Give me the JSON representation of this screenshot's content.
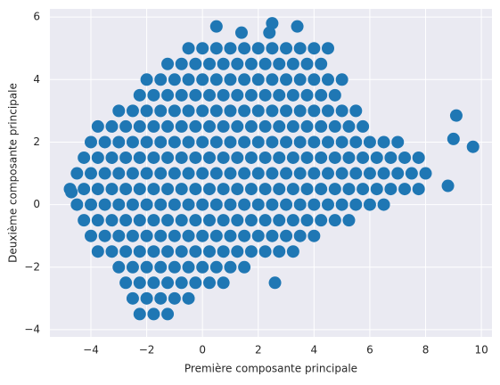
{
  "chart_data": {
    "type": "scatter",
    "x_label": "Première composante principale",
    "y_label": "Deuxième composante principale",
    "color": "#1f77b4",
    "grid": true,
    "xlim": [
      -5.47,
      10.38
    ],
    "ylim": [
      -4.23,
      6.26
    ],
    "xticks": [
      {
        "value": -4,
        "label": "−4"
      },
      {
        "value": -2,
        "label": "−2"
      },
      0,
      2,
      4,
      6,
      8,
      10
    ],
    "yticks": [
      {
        "value": -4,
        "label": "−4"
      },
      {
        "value": -2,
        "label": "−2"
      },
      0,
      2,
      4,
      6
    ],
    "x": [
      -0.5,
      0,
      0.5,
      1,
      1.5,
      2,
      2.5,
      3,
      3.5,
      4,
      4.5,
      -1.25,
      -0.75,
      -0.25,
      0.25,
      0.75,
      1.25,
      1.75,
      2.25,
      2.75,
      3.25,
      3.75,
      4.25,
      -2,
      -1.5,
      -1,
      -0.5,
      0,
      0.5,
      1,
      1.5,
      2,
      2.5,
      3,
      3.5,
      4,
      4.5,
      5,
      -2.25,
      -1.75,
      -1.25,
      -0.75,
      -0.25,
      0.25,
      0.75,
      1.25,
      1.75,
      2.25,
      2.75,
      3.25,
      3.75,
      4.25,
      4.75,
      -3,
      -2.5,
      -2,
      -1.5,
      -1,
      -0.5,
      0,
      0.5,
      1,
      1.5,
      2,
      2.5,
      3,
      3.5,
      4,
      4.5,
      5,
      5.5,
      -3.75,
      -3.25,
      -2.75,
      -2.25,
      -1.75,
      -1.25,
      -0.75,
      -0.25,
      0.25,
      0.75,
      1.25,
      1.75,
      2.25,
      2.75,
      3.25,
      3.75,
      4.25,
      4.75,
      5.25,
      5.75,
      -4,
      -3.5,
      -3,
      -2.5,
      -2,
      -1.5,
      -1,
      -0.5,
      0,
      0.5,
      1,
      1.5,
      2,
      2.5,
      3,
      3.5,
      4,
      4.5,
      5,
      5.5,
      6,
      6.5,
      7,
      -4.25,
      -3.75,
      -3.25,
      -2.75,
      -2.25,
      -1.75,
      -1.25,
      -0.75,
      -0.25,
      0.25,
      0.75,
      1.25,
      1.75,
      2.25,
      2.75,
      3.25,
      3.75,
      4.25,
      4.75,
      5.25,
      5.75,
      6.25,
      6.75,
      7.25,
      7.75,
      -4.5,
      -4,
      -3.5,
      -3,
      -2.5,
      -2,
      -1.5,
      -1,
      -0.5,
      0,
      0.5,
      1,
      1.5,
      2,
      2.5,
      3,
      3.5,
      4,
      4.5,
      5,
      5.5,
      6,
      6.5,
      7,
      7.5,
      8,
      -4.75,
      -4.25,
      -3.75,
      -3.25,
      -2.75,
      -2.25,
      -1.75,
      -1.25,
      -0.75,
      -0.25,
      0.25,
      0.75,
      1.25,
      1.75,
      2.25,
      2.75,
      3.25,
      3.75,
      4.25,
      4.75,
      5.25,
      5.75,
      6.25,
      6.75,
      7.25,
      7.75,
      -4.5,
      -4,
      -3.5,
      -3,
      -2.5,
      -2,
      -1.5,
      -1,
      -0.5,
      0,
      0.5,
      1,
      1.5,
      2,
      2.5,
      3,
      3.5,
      4,
      4.5,
      5,
      5.5,
      6,
      6.5,
      -4.25,
      -3.75,
      -3.25,
      -2.75,
      -2.25,
      -1.75,
      -1.25,
      -0.75,
      -0.25,
      0.25,
      0.75,
      1.25,
      1.75,
      2.25,
      2.75,
      3.25,
      3.75,
      4.25,
      4.75,
      5.25,
      -4,
      -3.5,
      -3,
      -2.5,
      -2,
      -1.5,
      -1,
      -0.5,
      0,
      0.5,
      1,
      1.5,
      2,
      2.5,
      3,
      3.5,
      4,
      -3.75,
      -3.25,
      -2.75,
      -2.25,
      -1.75,
      -1.25,
      -0.75,
      -0.25,
      0.25,
      0.75,
      1.25,
      1.75,
      2.25,
      2.75,
      3.25,
      -3,
      -2.5,
      -2,
      -1.5,
      -1,
      -0.5,
      0,
      0.5,
      1,
      1.5,
      -2.75,
      -2.25,
      -1.75,
      -1.25,
      -0.75,
      -0.25,
      0.25,
      0.75,
      -2.5,
      -2,
      -1.5,
      -1,
      -0.5,
      -2.25,
      -1.75,
      -1.25,
      9.7,
      9.1,
      9,
      8.8,
      2.5,
      2.4,
      1.4,
      0.5,
      3.4,
      2.6,
      -4.7
    ],
    "values": [
      5,
      5,
      5,
      5,
      5,
      5,
      5,
      5,
      5,
      5,
      5,
      4.5,
      4.5,
      4.5,
      4.5,
      4.5,
      4.5,
      4.5,
      4.5,
      4.5,
      4.5,
      4.5,
      4.5,
      4,
      4,
      4,
      4,
      4,
      4,
      4,
      4,
      4,
      4,
      4,
      4,
      4,
      4,
      4,
      3.5,
      3.5,
      3.5,
      3.5,
      3.5,
      3.5,
      3.5,
      3.5,
      3.5,
      3.5,
      3.5,
      3.5,
      3.5,
      3.5,
      3.5,
      3,
      3,
      3,
      3,
      3,
      3,
      3,
      3,
      3,
      3,
      3,
      3,
      3,
      3,
      3,
      3,
      3,
      3,
      2.5,
      2.5,
      2.5,
      2.5,
      2.5,
      2.5,
      2.5,
      2.5,
      2.5,
      2.5,
      2.5,
      2.5,
      2.5,
      2.5,
      2.5,
      2.5,
      2.5,
      2.5,
      2.5,
      2.5,
      2,
      2,
      2,
      2,
      2,
      2,
      2,
      2,
      2,
      2,
      2,
      2,
      2,
      2,
      2,
      2,
      2,
      2,
      2,
      2,
      2,
      2,
      2,
      1.5,
      1.5,
      1.5,
      1.5,
      1.5,
      1.5,
      1.5,
      1.5,
      1.5,
      1.5,
      1.5,
      1.5,
      1.5,
      1.5,
      1.5,
      1.5,
      1.5,
      1.5,
      1.5,
      1.5,
      1.5,
      1.5,
      1.5,
      1.5,
      1.5,
      1,
      1,
      1,
      1,
      1,
      1,
      1,
      1,
      1,
      1,
      1,
      1,
      1,
      1,
      1,
      1,
      1,
      1,
      1,
      1,
      1,
      1,
      1,
      1,
      1,
      1,
      0.5,
      0.5,
      0.5,
      0.5,
      0.5,
      0.5,
      0.5,
      0.5,
      0.5,
      0.5,
      0.5,
      0.5,
      0.5,
      0.5,
      0.5,
      0.5,
      0.5,
      0.5,
      0.5,
      0.5,
      0.5,
      0.5,
      0.5,
      0.5,
      0.5,
      0.5,
      0,
      0,
      0,
      0,
      0,
      0,
      0,
      0,
      0,
      0,
      0,
      0,
      0,
      0,
      0,
      0,
      0,
      0,
      0,
      0,
      0,
      0,
      0,
      -0.5,
      -0.5,
      -0.5,
      -0.5,
      -0.5,
      -0.5,
      -0.5,
      -0.5,
      -0.5,
      -0.5,
      -0.5,
      -0.5,
      -0.5,
      -0.5,
      -0.5,
      -0.5,
      -0.5,
      -0.5,
      -0.5,
      -0.5,
      -1,
      -1,
      -1,
      -1,
      -1,
      -1,
      -1,
      -1,
      -1,
      -1,
      -1,
      -1,
      -1,
      -1,
      -1,
      -1,
      -1,
      -1.5,
      -1.5,
      -1.5,
      -1.5,
      -1.5,
      -1.5,
      -1.5,
      -1.5,
      -1.5,
      -1.5,
      -1.5,
      -1.5,
      -1.5,
      -1.5,
      -1.5,
      -2,
      -2,
      -2,
      -2,
      -2,
      -2,
      -2,
      -2,
      -2,
      -2,
      -2.5,
      -2.5,
      -2.5,
      -2.5,
      -2.5,
      -2.5,
      -2.5,
      -2.5,
      -3,
      -3,
      -3,
      -3,
      -3,
      -3.5,
      -3.5,
      -3.5,
      1.85,
      2.85,
      2.1,
      0.6,
      5.8,
      5.5,
      5.5,
      5.7,
      5.7,
      -2.5,
      0.4
    ]
  }
}
